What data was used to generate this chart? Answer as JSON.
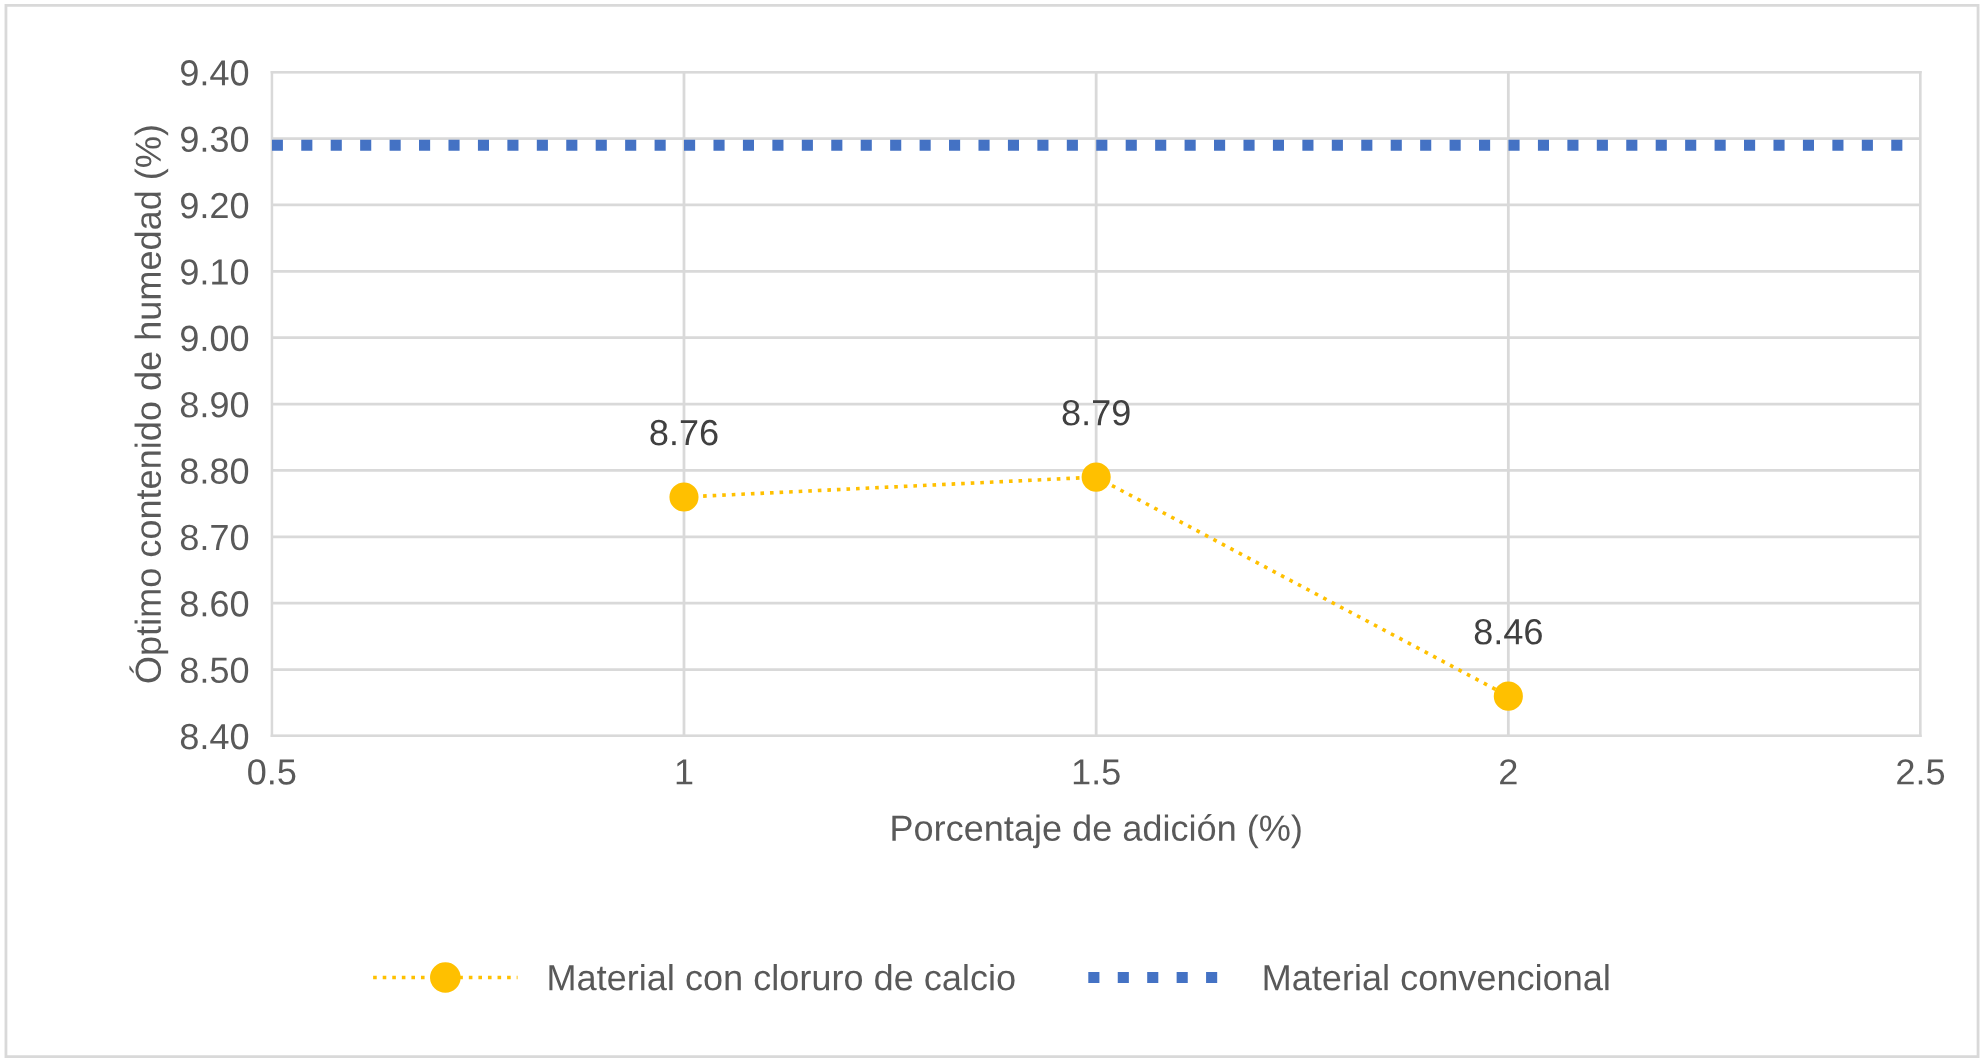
{
  "chart_data": {
    "type": "line",
    "xlabel": "Porcentaje de adición (%)",
    "ylabel": "Óptimo contenido de humedad (%)",
    "x": [
      1,
      1.5,
      2
    ],
    "series": [
      {
        "name": "Material con cloruro de calcio",
        "color": "#ffc000",
        "values": [
          8.76,
          8.79,
          8.46
        ],
        "marker": "circle",
        "line_style": "dotted"
      }
    ],
    "ref_lines": [
      {
        "axis": "y",
        "value": 9.29,
        "label": "Material convencional",
        "color": "#4472c4",
        "line_style": "dotted"
      }
    ],
    "data_labels": true,
    "xlim": [
      0.5,
      2.5
    ],
    "xticks": [
      0.5,
      1,
      1.5,
      2,
      2.5
    ],
    "ylim": [
      8.4,
      9.4
    ],
    "yticks": [
      {
        "value": 8.4,
        "label": "8.40"
      },
      {
        "value": 8.5,
        "label": "8.50"
      },
      {
        "value": 8.6,
        "label": "8.60"
      },
      {
        "value": 8.7,
        "label": "8.70"
      },
      {
        "value": 8.8,
        "label": "8.80"
      },
      {
        "value": 8.9,
        "label": "8.90"
      },
      {
        "value": 9.0,
        "label": "9.00"
      },
      {
        "value": 9.1,
        "label": "9.10"
      },
      {
        "value": 9.2,
        "label": "9.20"
      },
      {
        "value": 9.3,
        "label": "9.30"
      },
      {
        "value": 9.4,
        "label": "9.40"
      }
    ],
    "grid": true,
    "legend": "bottom"
  }
}
